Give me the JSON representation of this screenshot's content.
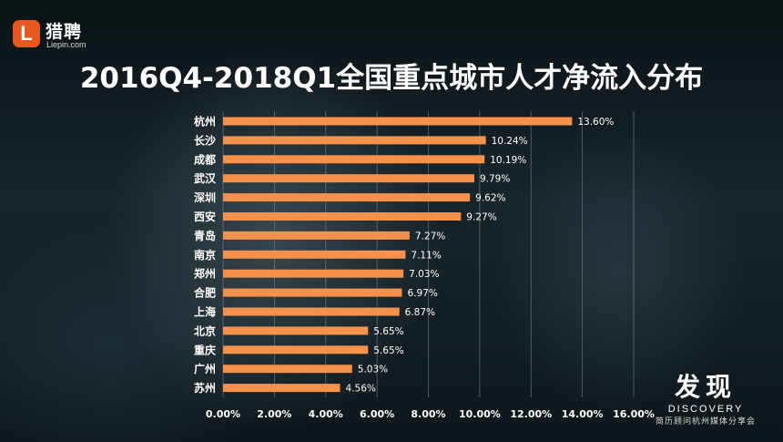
{
  "brand": {
    "badge_letter": "L",
    "name_cn": "猎聘",
    "name_en": "Liepin.com"
  },
  "title": "2016Q4-2018Q1全国重点城市人才净流入分布",
  "corner": {
    "title_cn": "发现",
    "title_en": "DISCOVERY",
    "subtitle": "简历顾问杭州媒体分享会"
  },
  "colors": {
    "bar": "#f4914d",
    "grid": "#7a8a90",
    "text": "#ffffff"
  },
  "chart_data": {
    "type": "bar",
    "orientation": "horizontal",
    "title": "2016Q4-2018Q1全国重点城市人才净流入分布",
    "xlabel": "",
    "ylabel": "",
    "xlim": [
      0,
      16
    ],
    "x_ticks": [
      "0.00%",
      "2.00%",
      "4.00%",
      "6.00%",
      "8.00%",
      "10.00%",
      "12.00%",
      "14.00%",
      "16.00%"
    ],
    "grid": true,
    "categories": [
      "杭州",
      "长沙",
      "成都",
      "武汉",
      "深圳",
      "西安",
      "青岛",
      "南京",
      "郑州",
      "合肥",
      "上海",
      "北京",
      "重庆",
      "广州",
      "苏州"
    ],
    "values": [
      13.6,
      10.24,
      10.19,
      9.79,
      9.62,
      9.27,
      7.27,
      7.11,
      7.03,
      6.97,
      6.87,
      5.65,
      5.65,
      5.03,
      4.56
    ],
    "value_labels": [
      "13.60%",
      "10.24%",
      "10.19%",
      "9.79%",
      "9.62%",
      "9.27%",
      "7.27%",
      "7.11%",
      "7.03%",
      "6.97%",
      "6.87%",
      "5.65%",
      "5.65%",
      "5.03%",
      "4.56%"
    ]
  }
}
